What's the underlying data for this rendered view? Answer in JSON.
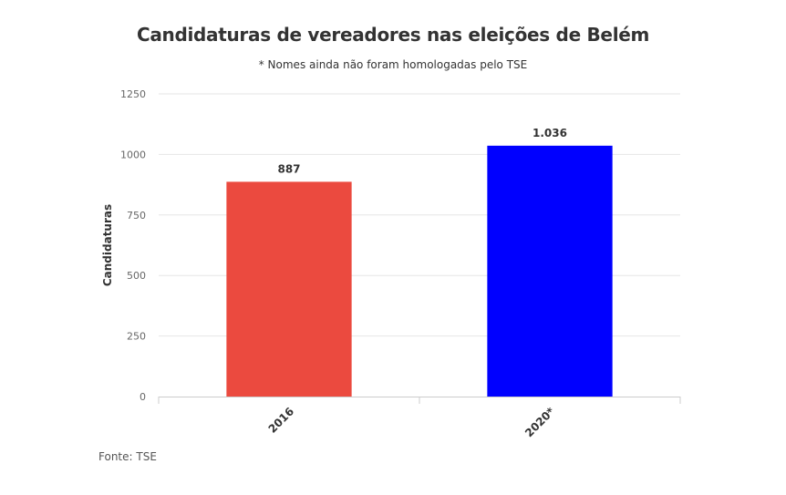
{
  "chart_data": {
    "type": "bar",
    "title": "Candidaturas de vereadores nas eleições de Belém",
    "subtitle": "* Nomes ainda não foram homologadas pelo TSE",
    "source": "Fonte: TSE",
    "ylabel": "Candidaturas",
    "xlabel": "",
    "categories": [
      "2016",
      "2020*"
    ],
    "values": [
      887,
      1036
    ],
    "data_labels": [
      "887",
      "1.036"
    ],
    "colors": [
      "#eb4a3f",
      "#0000ff"
    ],
    "ylim": [
      0,
      1250
    ],
    "yticks": [
      0,
      250,
      500,
      750,
      1000,
      1250
    ],
    "grid": true,
    "legend": "none"
  }
}
